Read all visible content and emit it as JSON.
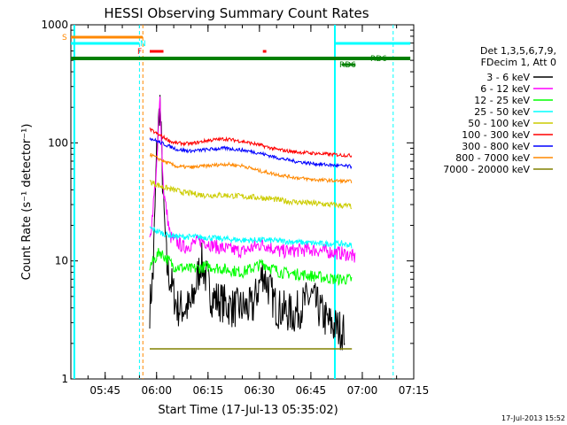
{
  "chart_data": {
    "type": "line",
    "title": "HESSI Observing Summary Count Rates",
    "xlabel": "Start Time (17-Jul-13 05:35:02)",
    "ylabel": "Count Rate (s⁻¹ detector⁻¹)",
    "yscale": "log",
    "ylim": [
      1,
      1000
    ],
    "xlim": [
      "05:35",
      "07:15"
    ],
    "x_ticks": [
      "05:45",
      "06:00",
      "06:15",
      "06:30",
      "06:45",
      "07:00",
      "07:15"
    ],
    "y_ticks": [
      "1",
      "10",
      "100",
      "1000"
    ],
    "legend": {
      "position": "right",
      "header": [
        "Det 1,3,5,6,7,9,",
        "FDecim 1, Att 0"
      ]
    },
    "series": [
      {
        "name": "3 - 6 keV",
        "color": "#000000",
        "points": [
          [
            "05:58",
            4
          ],
          [
            "05:59",
            8
          ],
          [
            "06:00",
            80
          ],
          [
            "06:01",
            220
          ],
          [
            "06:02",
            30
          ],
          [
            "06:03",
            9
          ],
          [
            "06:06",
            4
          ],
          [
            "06:10",
            4
          ],
          [
            "06:13",
            10
          ],
          [
            "06:16",
            5
          ],
          [
            "06:22",
            4
          ],
          [
            "06:28",
            4
          ],
          [
            "06:31",
            8
          ],
          [
            "06:35",
            4
          ],
          [
            "06:40",
            3.5
          ],
          [
            "06:45",
            5
          ],
          [
            "06:50",
            3
          ],
          [
            "06:55",
            2.5
          ]
        ]
      },
      {
        "name": "6 - 12 keV",
        "color": "#ff00ff",
        "points": [
          [
            "05:58",
            14
          ],
          [
            "06:00",
            60
          ],
          [
            "06:01",
            240
          ],
          [
            "06:02",
            40
          ],
          [
            "06:04",
            16
          ],
          [
            "06:08",
            13
          ],
          [
            "06:13",
            15
          ],
          [
            "06:18",
            13
          ],
          [
            "06:25",
            12
          ],
          [
            "06:31",
            14
          ],
          [
            "06:36",
            12
          ],
          [
            "06:45",
            12.5
          ],
          [
            "06:55",
            11.5
          ],
          [
            "06:57",
            11
          ],
          [
            "06:58",
            10.5
          ]
        ]
      },
      {
        "name": "12 - 25 keV",
        "color": "#00ff00",
        "points": [
          [
            "05:58",
            9
          ],
          [
            "06:01",
            12
          ],
          [
            "06:05",
            9
          ],
          [
            "06:10",
            8.5
          ],
          [
            "06:15",
            9
          ],
          [
            "06:20",
            8.5
          ],
          [
            "06:25",
            8
          ],
          [
            "06:31",
            9.5
          ],
          [
            "06:36",
            8
          ],
          [
            "06:45",
            7.5
          ],
          [
            "06:52",
            7
          ],
          [
            "06:57",
            7
          ]
        ]
      },
      {
        "name": "25 - 50 keV",
        "color": "#00ffff",
        "points": [
          [
            "05:58",
            19
          ],
          [
            "06:02",
            17
          ],
          [
            "06:06",
            16
          ],
          [
            "06:12",
            16
          ],
          [
            "06:18",
            15.5
          ],
          [
            "06:25",
            15
          ],
          [
            "06:32",
            15
          ],
          [
            "06:40",
            14.5
          ],
          [
            "06:48",
            14
          ],
          [
            "06:54",
            14
          ],
          [
            "06:57",
            13.5
          ]
        ]
      },
      {
        "name": "50 - 100 keV",
        "color": "#cccc00",
        "points": [
          [
            "05:58",
            47
          ],
          [
            "06:02",
            42
          ],
          [
            "06:08",
            38
          ],
          [
            "06:14",
            36
          ],
          [
            "06:20",
            36
          ],
          [
            "06:26",
            35
          ],
          [
            "06:32",
            34
          ],
          [
            "06:38",
            32
          ],
          [
            "06:44",
            31
          ],
          [
            "06:50",
            30
          ],
          [
            "06:57",
            29
          ]
        ]
      },
      {
        "name": "100 - 300 keV",
        "color": "#ff0000",
        "points": [
          [
            "05:58",
            130
          ],
          [
            "06:00",
            120
          ],
          [
            "06:05",
            100
          ],
          [
            "06:10",
            98
          ],
          [
            "06:15",
            105
          ],
          [
            "06:20",
            108
          ],
          [
            "06:25",
            103
          ],
          [
            "06:30",
            96
          ],
          [
            "06:35",
            88
          ],
          [
            "06:40",
            84
          ],
          [
            "06:45",
            82
          ],
          [
            "06:50",
            80
          ],
          [
            "06:57",
            78
          ]
        ]
      },
      {
        "name": "300 - 800 keV",
        "color": "#0000ff",
        "points": [
          [
            "05:58",
            110
          ],
          [
            "06:02",
            98
          ],
          [
            "06:06",
            88
          ],
          [
            "06:10",
            85
          ],
          [
            "06:15",
            88
          ],
          [
            "06:20",
            90
          ],
          [
            "06:25",
            87
          ],
          [
            "06:30",
            82
          ],
          [
            "06:35",
            75
          ],
          [
            "06:40",
            70
          ],
          [
            "06:45",
            67
          ],
          [
            "06:50",
            65
          ],
          [
            "06:57",
            63
          ]
        ]
      },
      {
        "name": "800 - 7000 keV",
        "color": "#ff8800",
        "points": [
          [
            "05:58",
            80
          ],
          [
            "06:02",
            70
          ],
          [
            "06:06",
            63
          ],
          [
            "06:10",
            62
          ],
          [
            "06:15",
            64
          ],
          [
            "06:20",
            66
          ],
          [
            "06:25",
            64
          ],
          [
            "06:30",
            58
          ],
          [
            "06:35",
            54
          ],
          [
            "06:40",
            51
          ],
          [
            "06:45",
            49
          ],
          [
            "06:50",
            48
          ],
          [
            "06:57",
            47
          ]
        ]
      },
      {
        "name": "7000 - 20000 keV",
        "color": "#808000",
        "points": [
          [
            "05:58",
            1.8
          ],
          [
            "06:57",
            1.8
          ]
        ]
      }
    ],
    "annotations": [
      {
        "text": "S",
        "color": "#ff8800"
      },
      {
        "text": "N",
        "color": "#00ffff"
      },
      {
        "text": "F",
        "color": "#ff0000"
      },
      {
        "text": "RD6",
        "color": "#008000"
      },
      {
        "text": "RD6",
        "color": "#008000"
      }
    ]
  },
  "footer": {
    "timestamp": "17-Jul-2013 15:52"
  }
}
